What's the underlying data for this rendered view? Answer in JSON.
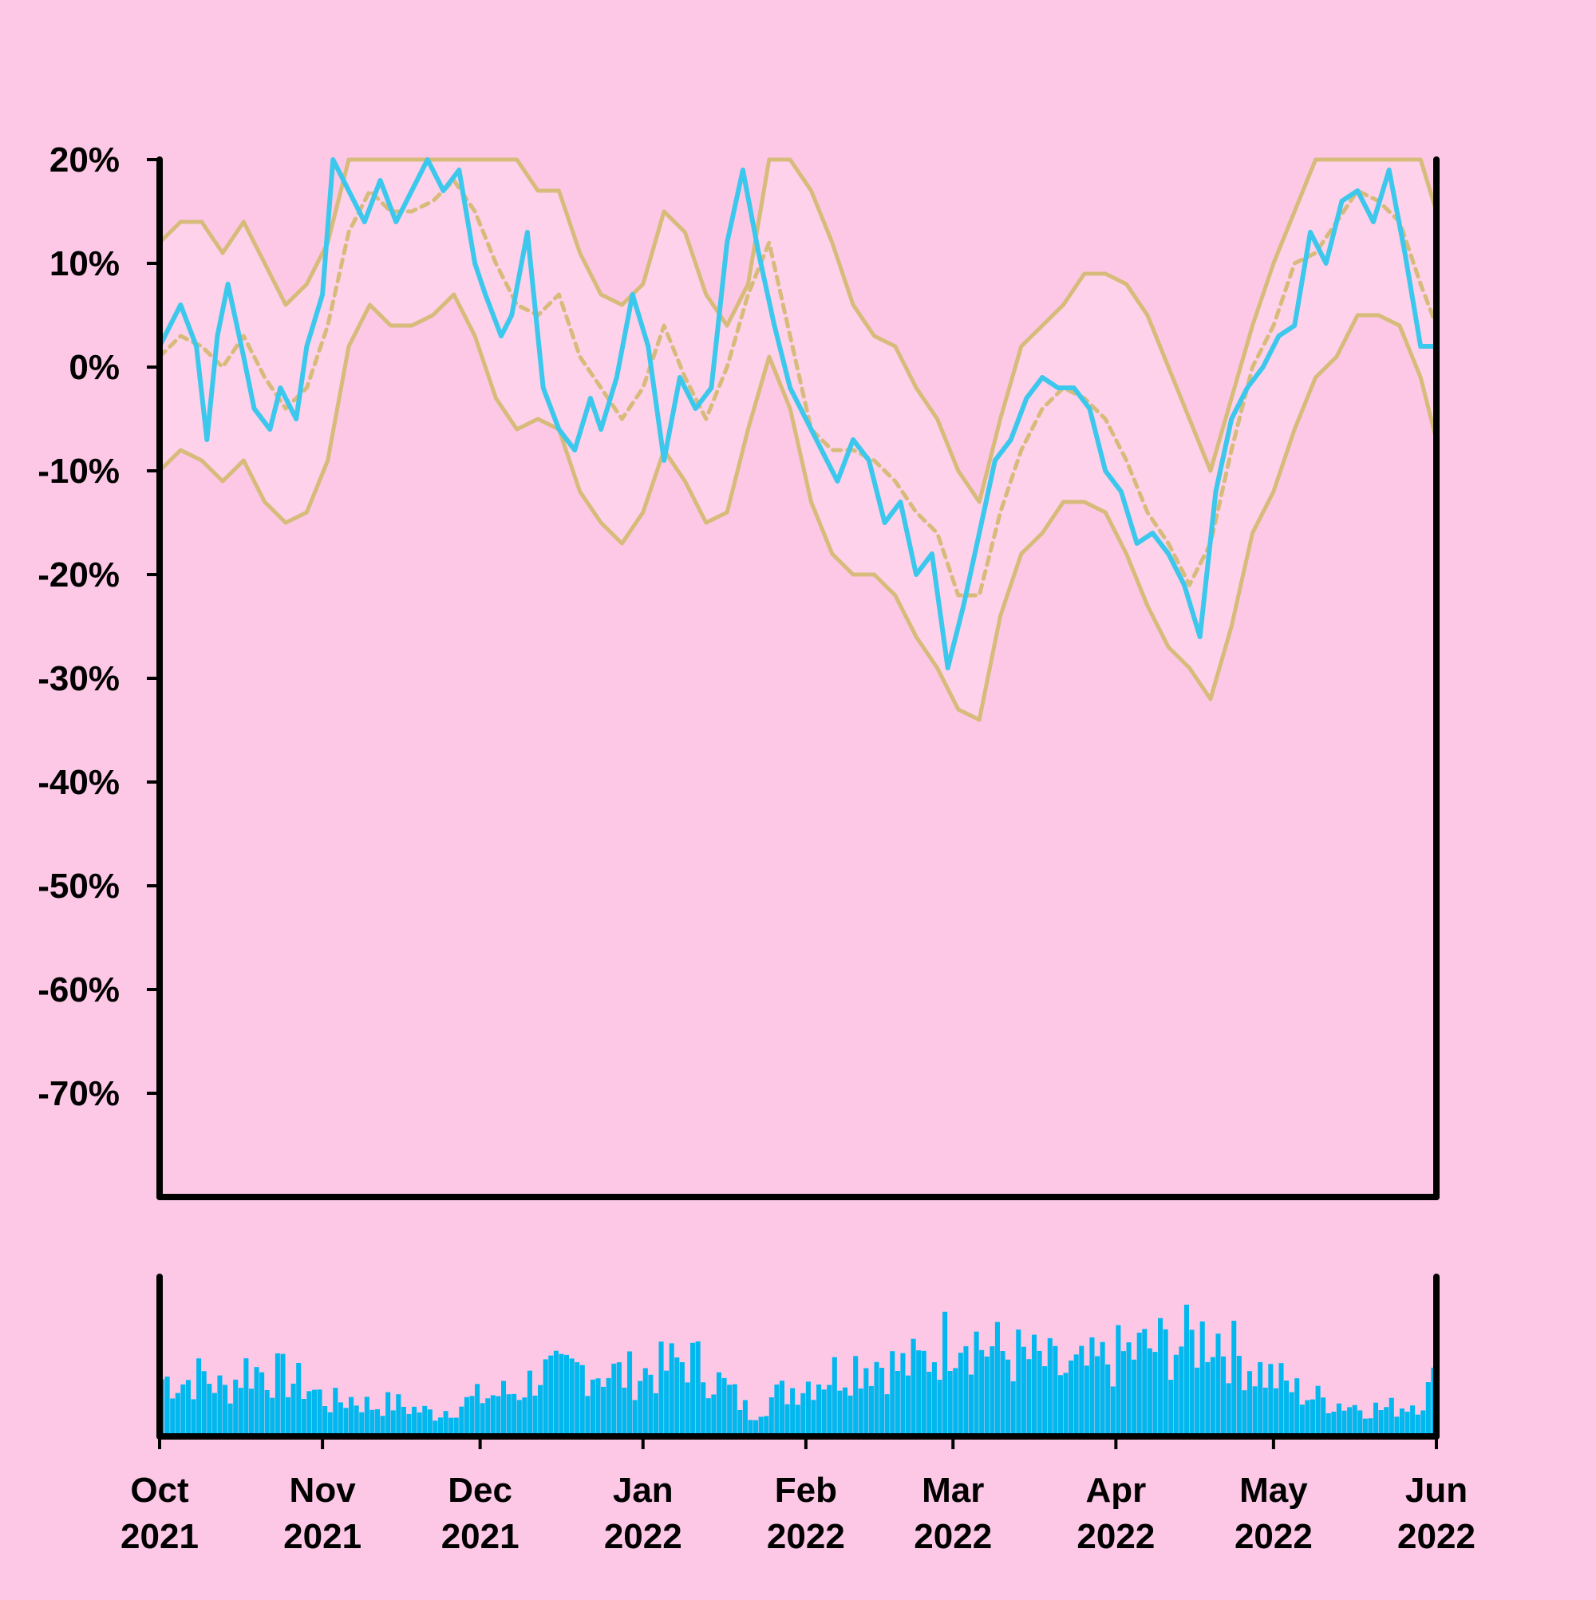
{
  "chart_data": {
    "type": "line",
    "colors": {
      "background": "#fdc8e6",
      "price_line": "#3cc8ec",
      "band_lines": "#d7bb7a",
      "band_fill": "#fdd2ea",
      "volume_bars": "#00b8ee",
      "axes": "#000000"
    },
    "grid": false,
    "legend": "none",
    "y_axis": {
      "range": [
        -80,
        20
      ],
      "ticks": [
        20,
        10,
        0,
        -10,
        -20,
        -30,
        -40,
        -50,
        -60,
        -70
      ],
      "tick_labels": [
        "20%",
        "10%",
        "0%",
        "-10%",
        "-20%",
        "-30%",
        "-40%",
        "-50%",
        "-60%",
        "-70%"
      ]
    },
    "x_axis": {
      "range": [
        "2021-10-01",
        "2022-06-01"
      ],
      "ticks": [
        "2021-10-01",
        "2021-11-01",
        "2021-12-01",
        "2022-01-01",
        "2022-02-01",
        "2022-03-01",
        "2022-04-01",
        "2022-05-01",
        "2022-06-01"
      ],
      "tick_labels": [
        [
          "Oct",
          "2021"
        ],
        [
          "Nov",
          "2021"
        ],
        [
          "Dec",
          "2021"
        ],
        [
          "Jan",
          "2022"
        ],
        [
          "Feb",
          "2022"
        ],
        [
          "Mar",
          "2022"
        ],
        [
          "Apr",
          "2022"
        ],
        [
          "May",
          "2022"
        ],
        [
          "Jun",
          "2022"
        ]
      ]
    },
    "series": [
      {
        "role": "price",
        "style": "solid",
        "x": [
          "2021-10-01",
          "2021-10-05",
          "2021-10-08",
          "2021-10-10",
          "2021-10-12",
          "2021-10-14",
          "2021-10-17",
          "2021-10-19",
          "2021-10-22",
          "2021-10-24",
          "2021-10-27",
          "2021-10-29",
          "2021-11-01",
          "2021-11-03",
          "2021-11-06",
          "2021-11-09",
          "2021-11-12",
          "2021-11-15",
          "2021-11-18",
          "2021-11-21",
          "2021-11-24",
          "2021-11-27",
          "2021-11-30",
          "2021-12-02",
          "2021-12-05",
          "2021-12-07",
          "2021-12-10",
          "2021-12-13",
          "2021-12-16",
          "2021-12-19",
          "2021-12-22",
          "2021-12-24",
          "2021-12-27",
          "2021-12-30",
          "2022-01-02",
          "2022-01-05",
          "2022-01-08",
          "2022-01-11",
          "2022-01-14",
          "2022-01-17",
          "2022-01-20",
          "2022-01-23",
          "2022-01-26",
          "2022-01-29",
          "2022-02-01",
          "2022-02-04",
          "2022-02-07",
          "2022-02-10",
          "2022-02-13",
          "2022-02-16",
          "2022-02-19",
          "2022-02-22",
          "2022-02-25",
          "2022-02-28",
          "2022-03-03",
          "2022-03-06",
          "2022-03-09",
          "2022-03-12",
          "2022-03-15",
          "2022-03-18",
          "2022-03-21",
          "2022-03-24",
          "2022-03-27",
          "2022-03-30",
          "2022-04-02",
          "2022-04-05",
          "2022-04-08",
          "2022-04-11",
          "2022-04-14",
          "2022-04-17",
          "2022-04-20",
          "2022-04-23",
          "2022-04-26",
          "2022-04-29",
          "2022-05-02",
          "2022-05-05",
          "2022-05-08",
          "2022-05-11",
          "2022-05-14",
          "2022-05-17",
          "2022-05-20",
          "2022-05-23",
          "2022-05-26",
          "2022-05-29",
          "2022-06-01"
        ],
        "values": [
          2,
          6,
          2,
          -7,
          3,
          8,
          1,
          -4,
          -6,
          -2,
          -5,
          2,
          7,
          20,
          17,
          14,
          18,
          14,
          17,
          20,
          17,
          19,
          10,
          7,
          3,
          5,
          13,
          -2,
          -6,
          -8,
          -3,
          -6,
          -1,
          7,
          2,
          -9,
          -1,
          -4,
          -2,
          12,
          19,
          11,
          4,
          -2,
          -5,
          -8,
          -11,
          -7,
          -9,
          -15,
          -13,
          -20,
          -18,
          -29,
          -23,
          -16,
          -9,
          -7,
          -3,
          -1,
          -2,
          -2,
          -4,
          -10,
          -12,
          -17,
          -16,
          -18,
          -21,
          -26,
          -12,
          -5,
          -2,
          0,
          3,
          4,
          13,
          10,
          16,
          17,
          14,
          19,
          11,
          2,
          2
        ]
      },
      {
        "role": "moving-average",
        "style": "dashed",
        "x": [
          "2021-10-01",
          "2021-10-05",
          "2021-10-09",
          "2021-10-13",
          "2021-10-17",
          "2021-10-21",
          "2021-10-25",
          "2021-10-29",
          "2021-11-02",
          "2021-11-06",
          "2021-11-10",
          "2021-11-14",
          "2021-11-18",
          "2021-11-22",
          "2021-11-26",
          "2021-11-30",
          "2021-12-04",
          "2021-12-08",
          "2021-12-12",
          "2021-12-16",
          "2021-12-20",
          "2021-12-24",
          "2021-12-28",
          "2022-01-01",
          "2022-01-05",
          "2022-01-09",
          "2022-01-13",
          "2022-01-17",
          "2022-01-21",
          "2022-01-25",
          "2022-01-29",
          "2022-02-02",
          "2022-02-06",
          "2022-02-10",
          "2022-02-14",
          "2022-02-18",
          "2022-02-22",
          "2022-02-26",
          "2022-03-02",
          "2022-03-06",
          "2022-03-10",
          "2022-03-14",
          "2022-03-18",
          "2022-03-22",
          "2022-03-26",
          "2022-03-30",
          "2022-04-03",
          "2022-04-07",
          "2022-04-11",
          "2022-04-15",
          "2022-04-19",
          "2022-04-23",
          "2022-04-27",
          "2022-05-01",
          "2022-05-05",
          "2022-05-09",
          "2022-05-13",
          "2022-05-17",
          "2022-05-21",
          "2022-05-25",
          "2022-05-29",
          "2022-06-01"
        ],
        "values": [
          1,
          3,
          2,
          0,
          3,
          -1,
          -4,
          -2,
          4,
          13,
          17,
          15,
          15,
          16,
          18,
          15,
          10,
          6,
          5,
          7,
          1,
          -2,
          -5,
          -2,
          4,
          -1,
          -5,
          0,
          7,
          12,
          3,
          -6,
          -8,
          -8,
          -9,
          -11,
          -14,
          -16,
          -22,
          -22,
          -14,
          -8,
          -4,
          -2,
          -3,
          -5,
          -9,
          -14,
          -17,
          -21,
          -17,
          -8,
          0,
          4,
          10,
          11,
          14,
          17,
          16,
          14,
          8,
          4
        ]
      },
      {
        "role": "upper-band",
        "style": "solid",
        "x": [
          "2021-10-01",
          "2021-10-05",
          "2021-10-09",
          "2021-10-13",
          "2021-10-17",
          "2021-10-21",
          "2021-10-25",
          "2021-10-29",
          "2021-11-02",
          "2021-11-06",
          "2021-11-10",
          "2021-11-14",
          "2021-11-18",
          "2021-11-22",
          "2021-11-26",
          "2021-11-30",
          "2021-12-04",
          "2021-12-08",
          "2021-12-12",
          "2021-12-16",
          "2021-12-20",
          "2021-12-24",
          "2021-12-28",
          "2022-01-01",
          "2022-01-05",
          "2022-01-09",
          "2022-01-13",
          "2022-01-17",
          "2022-01-21",
          "2022-01-25",
          "2022-01-29",
          "2022-02-02",
          "2022-02-06",
          "2022-02-10",
          "2022-02-14",
          "2022-02-18",
          "2022-02-22",
          "2022-02-26",
          "2022-03-02",
          "2022-03-06",
          "2022-03-10",
          "2022-03-14",
          "2022-03-18",
          "2022-03-22",
          "2022-03-26",
          "2022-03-30",
          "2022-04-03",
          "2022-04-07",
          "2022-04-11",
          "2022-04-15",
          "2022-04-19",
          "2022-04-23",
          "2022-04-27",
          "2022-05-01",
          "2022-05-05",
          "2022-05-09",
          "2022-05-13",
          "2022-05-17",
          "2022-05-21",
          "2022-05-25",
          "2022-05-29",
          "2022-06-01"
        ],
        "values": [
          12,
          14,
          14,
          11,
          14,
          10,
          6,
          8,
          12,
          20,
          20,
          20,
          20,
          20,
          20,
          20,
          20,
          20,
          17,
          17,
          11,
          7,
          6,
          8,
          15,
          13,
          7,
          4,
          8,
          20,
          20,
          17,
          12,
          6,
          3,
          2,
          -2,
          -5,
          -10,
          -13,
          -5,
          2,
          4,
          6,
          9,
          9,
          8,
          5,
          0,
          -5,
          -10,
          -3,
          4,
          10,
          15,
          20,
          20,
          20,
          20,
          20,
          20,
          15
        ]
      },
      {
        "role": "lower-band",
        "style": "solid",
        "x": [
          "2021-10-01",
          "2021-10-05",
          "2021-10-09",
          "2021-10-13",
          "2021-10-17",
          "2021-10-21",
          "2021-10-25",
          "2021-10-29",
          "2021-11-02",
          "2021-11-06",
          "2021-11-10",
          "2021-11-14",
          "2021-11-18",
          "2021-11-22",
          "2021-11-26",
          "2021-11-30",
          "2021-12-04",
          "2021-12-08",
          "2021-12-12",
          "2021-12-16",
          "2021-12-20",
          "2021-12-24",
          "2021-12-28",
          "2022-01-01",
          "2022-01-05",
          "2022-01-09",
          "2022-01-13",
          "2022-01-17",
          "2022-01-21",
          "2022-01-25",
          "2022-01-29",
          "2022-02-02",
          "2022-02-06",
          "2022-02-10",
          "2022-02-14",
          "2022-02-18",
          "2022-02-22",
          "2022-02-26",
          "2022-03-02",
          "2022-03-06",
          "2022-03-10",
          "2022-03-14",
          "2022-03-18",
          "2022-03-22",
          "2022-03-26",
          "2022-03-30",
          "2022-04-03",
          "2022-04-07",
          "2022-04-11",
          "2022-04-15",
          "2022-04-19",
          "2022-04-23",
          "2022-04-27",
          "2022-05-01",
          "2022-05-05",
          "2022-05-09",
          "2022-05-13",
          "2022-05-17",
          "2022-05-21",
          "2022-05-25",
          "2022-05-29",
          "2022-06-01"
        ],
        "values": [
          -10,
          -8,
          -9,
          -11,
          -9,
          -13,
          -15,
          -14,
          -9,
          2,
          6,
          4,
          4,
          5,
          7,
          3,
          -3,
          -6,
          -5,
          -6,
          -12,
          -15,
          -17,
          -14,
          -8,
          -11,
          -15,
          -14,
          -6,
          1,
          -4,
          -13,
          -18,
          -20,
          -20,
          -22,
          -26,
          -29,
          -33,
          -34,
          -24,
          -18,
          -16,
          -13,
          -13,
          -14,
          -18,
          -23,
          -27,
          -29,
          -32,
          -25,
          -16,
          -12,
          -6,
          -1,
          1,
          5,
          5,
          4,
          -1,
          -7
        ]
      }
    ],
    "volume": {
      "x": [
        "2021-10-01",
        "2021-10-05",
        "2021-10-09",
        "2021-10-13",
        "2021-10-17",
        "2021-10-21",
        "2021-10-25",
        "2021-10-29",
        "2021-11-02",
        "2021-11-06",
        "2021-11-10",
        "2021-11-14",
        "2021-11-18",
        "2021-11-22",
        "2021-11-26",
        "2021-11-30",
        "2021-12-04",
        "2021-12-08",
        "2021-12-12",
        "2021-12-16",
        "2021-12-20",
        "2021-12-24",
        "2021-12-28",
        "2022-01-01",
        "2022-01-05",
        "2022-01-09",
        "2022-01-13",
        "2022-01-17",
        "2022-01-21",
        "2022-01-25",
        "2022-01-29",
        "2022-02-02",
        "2022-02-06",
        "2022-02-10",
        "2022-02-14",
        "2022-02-18",
        "2022-02-22",
        "2022-02-26",
        "2022-03-02",
        "2022-03-06",
        "2022-03-10",
        "2022-03-14",
        "2022-03-18",
        "2022-03-22",
        "2022-03-26",
        "2022-03-30",
        "2022-04-03",
        "2022-04-07",
        "2022-04-11",
        "2022-04-15",
        "2022-04-19",
        "2022-04-23",
        "2022-04-27",
        "2022-05-01",
        "2022-05-05",
        "2022-05-09",
        "2022-05-13",
        "2022-05-17",
        "2022-05-21",
        "2022-05-25",
        "2022-05-29",
        "2022-06-01"
      ],
      "values": [
        0.38,
        0.36,
        0.4,
        0.3,
        0.45,
        0.42,
        0.38,
        0.32,
        0.22,
        0.25,
        0.2,
        0.22,
        0.18,
        0.15,
        0.2,
        0.25,
        0.28,
        0.3,
        0.42,
        0.4,
        0.45,
        0.43,
        0.4,
        0.42,
        0.45,
        0.52,
        0.42,
        0.3,
        0.15,
        0.25,
        0.32,
        0.38,
        0.42,
        0.48,
        0.5,
        0.45,
        0.48,
        0.58,
        0.75,
        0.6,
        0.55,
        0.52,
        0.48,
        0.42,
        0.45,
        0.5,
        0.55,
        0.58,
        0.6,
        0.62,
        0.7,
        0.55,
        0.45,
        0.38,
        0.3,
        0.25,
        0.22,
        0.2,
        0.18,
        0.2,
        0.25,
        0.4
      ]
    }
  }
}
